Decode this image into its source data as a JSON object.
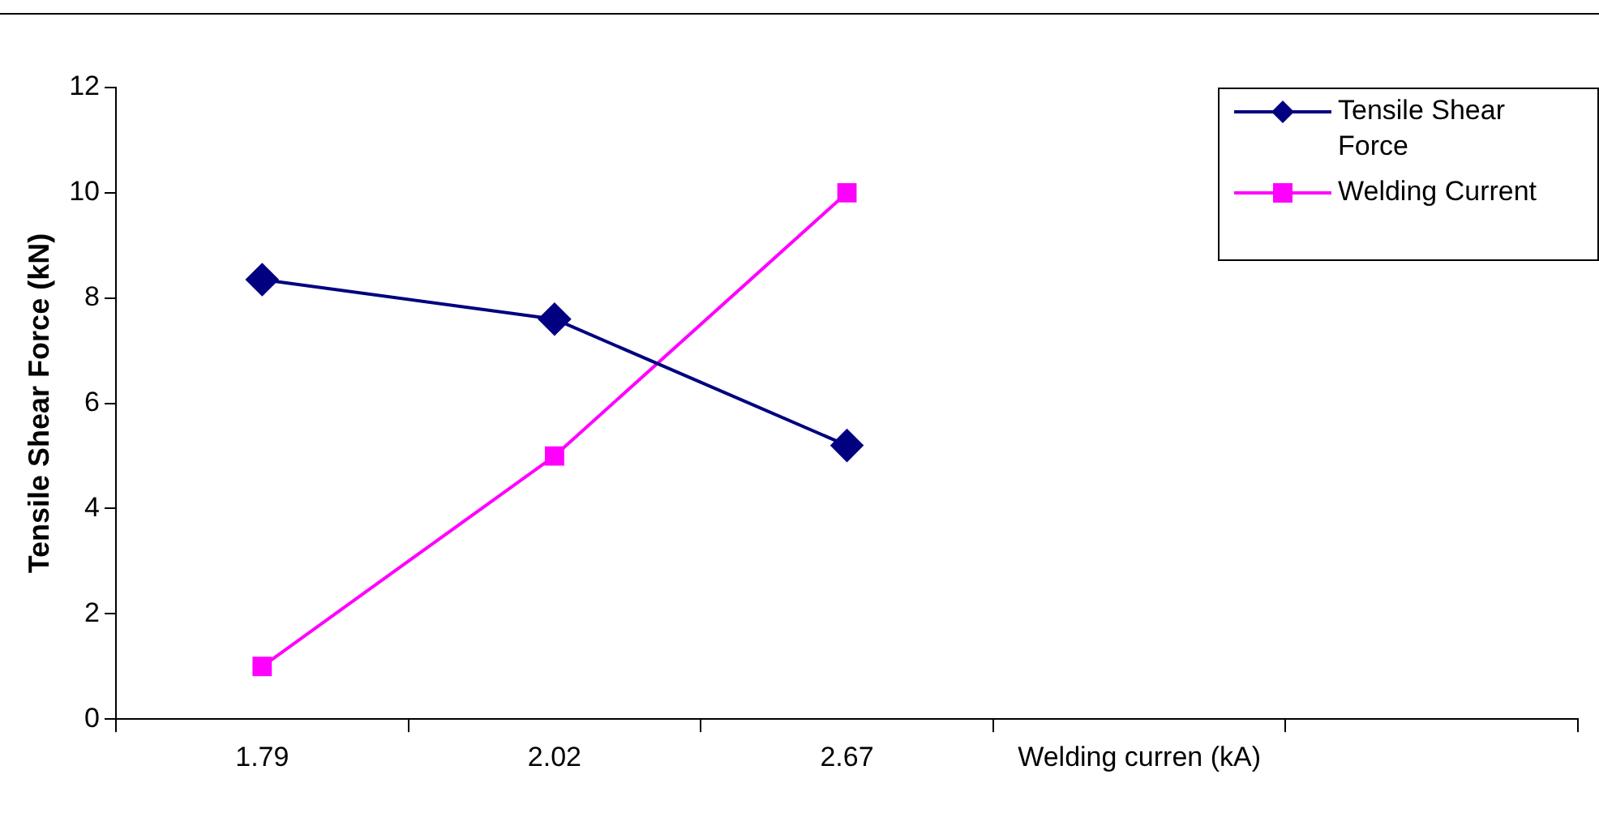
{
  "chart_data": {
    "type": "line",
    "ylabel": "Tensile Shear Force (kN)",
    "categories": [
      "1.79",
      "2.02",
      "2.67",
      "Welding curren (kA)",
      null
    ],
    "series": [
      {
        "name": "Tensile Shear Force",
        "color": "#000080",
        "marker": "diamond",
        "values": [
          8.35,
          7.6,
          5.2,
          null,
          null
        ]
      },
      {
        "name": "Welding Current",
        "color": "#ff00ff",
        "marker": "square",
        "values": [
          1.0,
          5.0,
          10.0,
          null,
          null
        ]
      }
    ],
    "ylim": [
      0,
      12
    ],
    "yticks": [
      0,
      2,
      4,
      6,
      8,
      10,
      12
    ],
    "grid": false,
    "legend": "top right"
  }
}
